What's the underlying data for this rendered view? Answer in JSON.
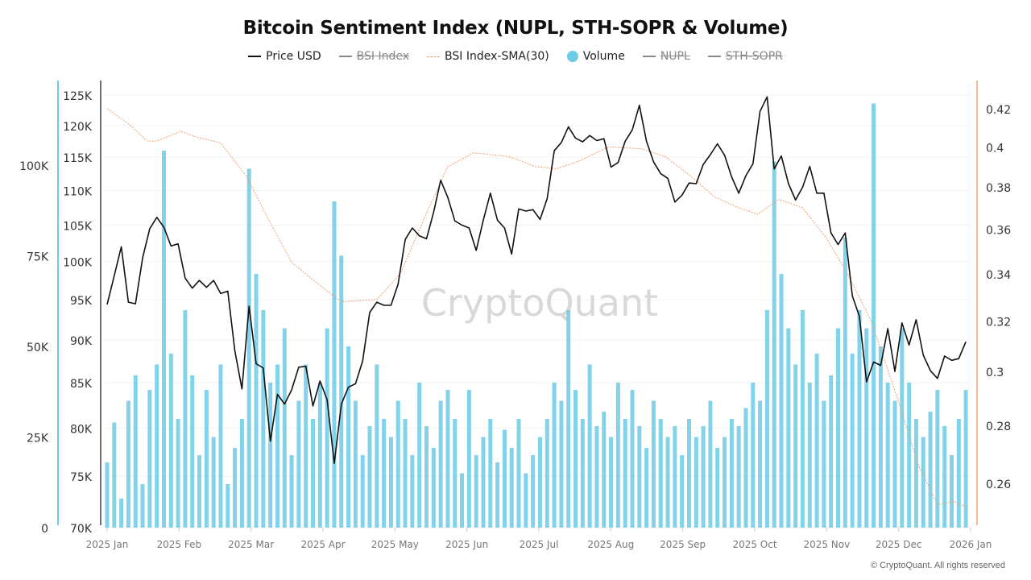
{
  "chart_data": {
    "type": "line",
    "title": "Bitcoin Sentiment Index (NUPL, STH-SOPR & Volume)",
    "legend": [
      {
        "name": "Price USD",
        "visible": true,
        "color": "#111111"
      },
      {
        "name": "BSI Index",
        "visible": false,
        "color": "#888888"
      },
      {
        "name": "BSI Index-SMA(30)",
        "visible": true,
        "color": "#f0a070"
      },
      {
        "name": "Volume",
        "visible": true,
        "color": "#6ccbe6"
      },
      {
        "name": "NUPL",
        "visible": false,
        "color": "#888888"
      },
      {
        "name": "STH-SOPR",
        "visible": false,
        "color": "#888888"
      }
    ],
    "legend_position": "top",
    "grid": true,
    "watermark": "CryptoQuant",
    "copyright": "© CryptoQuant. All rights reserved",
    "x_ticks": [
      "2025 Jan",
      "2025 Feb",
      "2025 Mar",
      "2025 Apr",
      "2025 May",
      "2025 Jun",
      "2025 Jul",
      "2025 Aug",
      "2025 Sep",
      "2025 Oct",
      "2025 Nov",
      "2025 Dec",
      "2026 Jan"
    ],
    "x_range": [
      "2025-01-01",
      "2026-01-01"
    ],
    "axes": {
      "volume": {
        "ticks": [
          "0",
          "25K",
          "50K",
          "75K",
          "100K"
        ],
        "range": [
          0,
          100000
        ],
        "scale": "linear",
        "color": "#6ccbe6"
      },
      "price": {
        "ticks": [
          "70K",
          "75K",
          "80K",
          "85K",
          "90K",
          "95K",
          "100K",
          "105K",
          "110K",
          "115K",
          "120K",
          "125K"
        ],
        "range": [
          70000,
          125000
        ],
        "scale": "log",
        "color": "#111111"
      },
      "bsi": {
        "ticks": [
          "0.26",
          "0.28",
          "0.3",
          "0.32",
          "0.34",
          "0.36",
          "0.38",
          "0.4",
          "0.42"
        ],
        "range": [
          0.26,
          0.42
        ],
        "scale": "log",
        "color": "#f0a070"
      }
    },
    "dates": [
      "2025-01-01",
      "2025-01-04",
      "2025-01-07",
      "2025-01-10",
      "2025-01-13",
      "2025-01-16",
      "2025-01-19",
      "2025-01-22",
      "2025-01-25",
      "2025-01-28",
      "2025-01-31",
      "2025-02-03",
      "2025-02-06",
      "2025-02-09",
      "2025-02-12",
      "2025-02-15",
      "2025-02-18",
      "2025-02-21",
      "2025-02-24",
      "2025-02-27",
      "2025-03-02",
      "2025-03-05",
      "2025-03-08",
      "2025-03-11",
      "2025-03-14",
      "2025-03-17",
      "2025-03-20",
      "2025-03-23",
      "2025-03-26",
      "2025-03-29",
      "2025-04-01",
      "2025-04-04",
      "2025-04-07",
      "2025-04-10",
      "2025-04-13",
      "2025-04-16",
      "2025-04-19",
      "2025-04-22",
      "2025-04-25",
      "2025-04-28",
      "2025-05-01",
      "2025-05-04",
      "2025-05-07",
      "2025-05-10",
      "2025-05-13",
      "2025-05-16",
      "2025-05-19",
      "2025-05-22",
      "2025-05-25",
      "2025-05-28",
      "2025-05-31",
      "2025-06-03",
      "2025-06-06",
      "2025-06-09",
      "2025-06-12",
      "2025-06-15",
      "2025-06-18",
      "2025-06-21",
      "2025-06-24",
      "2025-06-27",
      "2025-06-30",
      "2025-07-03",
      "2025-07-06",
      "2025-07-09",
      "2025-07-12",
      "2025-07-15",
      "2025-07-18",
      "2025-07-21",
      "2025-07-24",
      "2025-07-27",
      "2025-07-30",
      "2025-08-02",
      "2025-08-05",
      "2025-08-08",
      "2025-08-11",
      "2025-08-14",
      "2025-08-17",
      "2025-08-20",
      "2025-08-23",
      "2025-08-26",
      "2025-08-29",
      "2025-09-01",
      "2025-09-04",
      "2025-09-07",
      "2025-09-10",
      "2025-09-13",
      "2025-09-16",
      "2025-09-19",
      "2025-09-22",
      "2025-09-25",
      "2025-09-28",
      "2025-10-01",
      "2025-10-04",
      "2025-10-07",
      "2025-10-10",
      "2025-10-13",
      "2025-10-16",
      "2025-10-19",
      "2025-10-22",
      "2025-10-25",
      "2025-10-28",
      "2025-10-31",
      "2025-11-03",
      "2025-11-06",
      "2025-11-09",
      "2025-11-12",
      "2025-11-15",
      "2025-11-18",
      "2025-11-21",
      "2025-11-24",
      "2025-11-27",
      "2025-11-30",
      "2025-12-03",
      "2025-12-06",
      "2025-12-09",
      "2025-12-12",
      "2025-12-15",
      "2025-12-18",
      "2025-12-21",
      "2025-12-24",
      "2025-12-27",
      "2025-12-30"
    ],
    "series": [
      {
        "name": "Price USD",
        "axis": "price",
        "values": [
          94400,
          98100,
          102000,
          94700,
          94500,
          100500,
          104500,
          106100,
          104700,
          102100,
          102400,
          97800,
          96500,
          97500,
          96600,
          97500,
          95800,
          96100,
          88700,
          84300,
          94200,
          87200,
          86700,
          78600,
          83700,
          82600,
          84200,
          86800,
          86900,
          82400,
          85200,
          83100,
          76300,
          82600,
          84500,
          84900,
          87500,
          93400,
          94700,
          94300,
          94300,
          97000,
          103000,
          104600,
          103500,
          103100,
          106800,
          111500,
          109000,
          105600,
          105000,
          104600,
          101500,
          105700,
          109600,
          105700,
          104600,
          101000,
          107300,
          107000,
          107200,
          105800,
          108800,
          116000,
          117300,
          119800,
          118000,
          117400,
          118400,
          117600,
          117900,
          113500,
          114200,
          117500,
          119300,
          123300,
          117500,
          114300,
          112500,
          111800,
          108300,
          109300,
          111100,
          111000,
          113900,
          115400,
          117100,
          115300,
          112000,
          109600,
          112200,
          114000,
          122300,
          124700,
          113200,
          115200,
          111000,
          108600,
          110500,
          113600,
          109600,
          109600,
          103900,
          102300,
          103900,
          95500,
          92900,
          85100,
          87400,
          87000,
          91400,
          86300,
          92100,
          89400,
          92500,
          88200,
          86400,
          85500,
          88100,
          87600,
          87800,
          89800
        ]
      },
      {
        "name": "Volume",
        "axis": "volume",
        "values": [
          18000,
          29000,
          8000,
          35000,
          42000,
          12000,
          38000,
          45000,
          104000,
          48000,
          30000,
          60000,
          42000,
          20000,
          38000,
          25000,
          45000,
          12000,
          22000,
          30000,
          99000,
          70000,
          60000,
          40000,
          45000,
          55000,
          20000,
          35000,
          45000,
          30000,
          40000,
          55000,
          90000,
          75000,
          50000,
          35000,
          20000,
          28000,
          45000,
          30000,
          25000,
          35000,
          30000,
          20000,
          40000,
          28000,
          22000,
          35000,
          38000,
          30000,
          15000,
          38000,
          20000,
          25000,
          30000,
          18000,
          27000,
          22000,
          30000,
          15000,
          20000,
          25000,
          30000,
          40000,
          35000,
          60000,
          38000,
          30000,
          45000,
          28000,
          32000,
          25000,
          40000,
          30000,
          38000,
          28000,
          22000,
          35000,
          30000,
          25000,
          28000,
          20000,
          30000,
          25000,
          28000,
          35000,
          22000,
          25000,
          30000,
          28000,
          33000,
          40000,
          35000,
          60000,
          101000,
          70000,
          55000,
          45000,
          60000,
          40000,
          48000,
          35000,
          42000,
          55000,
          80000,
          48000,
          60000,
          55000,
          117000,
          50000,
          40000,
          35000,
          55000,
          40000,
          30000,
          25000,
          32000,
          38000,
          28000,
          20000,
          30000,
          38000
        ]
      },
      {
        "name": "BSI Index-SMA(30)",
        "axis": "bsi",
        "points": [
          [
            "2025-01-01",
            0.42
          ],
          [
            "2025-01-10",
            0.412
          ],
          [
            "2025-01-18",
            0.403
          ],
          [
            "2025-01-22",
            0.403
          ],
          [
            "2025-02-01",
            0.408
          ],
          [
            "2025-02-08",
            0.405
          ],
          [
            "2025-02-18",
            0.402
          ],
          [
            "2025-03-01",
            0.385
          ],
          [
            "2025-03-10",
            0.365
          ],
          [
            "2025-03-20",
            0.345
          ],
          [
            "2025-04-01",
            0.335
          ],
          [
            "2025-04-10",
            0.328
          ],
          [
            "2025-04-25",
            0.329
          ],
          [
            "2025-05-05",
            0.34
          ],
          [
            "2025-05-15",
            0.365
          ],
          [
            "2025-05-25",
            0.39
          ],
          [
            "2025-06-05",
            0.397
          ],
          [
            "2025-06-20",
            0.395
          ],
          [
            "2025-07-01",
            0.39
          ],
          [
            "2025-07-10",
            0.389
          ],
          [
            "2025-07-20",
            0.393
          ],
          [
            "2025-08-01",
            0.4
          ],
          [
            "2025-08-15",
            0.399
          ],
          [
            "2025-08-25",
            0.395
          ],
          [
            "2025-09-05",
            0.385
          ],
          [
            "2025-09-15",
            0.375
          ],
          [
            "2025-09-25",
            0.37
          ],
          [
            "2025-10-03",
            0.367
          ],
          [
            "2025-10-12",
            0.374
          ],
          [
            "2025-10-22",
            0.37
          ],
          [
            "2025-11-01",
            0.356
          ],
          [
            "2025-11-10",
            0.34
          ],
          [
            "2025-11-20",
            0.32
          ],
          [
            "2025-12-01",
            0.29
          ],
          [
            "2025-12-10",
            0.266
          ],
          [
            "2025-12-18",
            0.253
          ],
          [
            "2025-12-25",
            0.254
          ],
          [
            "2025-12-31",
            0.252
          ]
        ]
      }
    ]
  }
}
